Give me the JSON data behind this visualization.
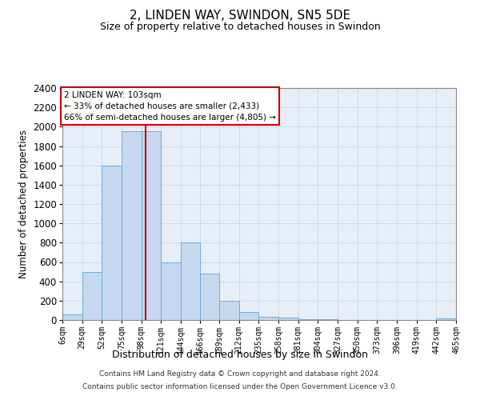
{
  "title": "2, LINDEN WAY, SWINDON, SN5 5DE",
  "subtitle": "Size of property relative to detached houses in Swindon",
  "xlabel": "Distribution of detached houses by size in Swindon",
  "ylabel": "Number of detached properties",
  "footer_line1": "Contains HM Land Registry data © Crown copyright and database right 2024.",
  "footer_line2": "Contains public sector information licensed under the Open Government Licence v3.0.",
  "annotation_title": "2 LINDEN WAY: 103sqm",
  "annotation_line1": "← 33% of detached houses are smaller (2,433)",
  "annotation_line2": "66% of semi-detached houses are larger (4,805) →",
  "bin_edges": [
    6,
    29,
    52,
    75,
    98,
    121,
    144,
    166,
    189,
    212,
    235,
    258,
    281,
    304,
    327,
    350,
    373,
    396,
    419,
    442,
    465
  ],
  "bin_labels": [
    "6sqm",
    "29sqm",
    "52sqm",
    "75sqm",
    "98sqm",
    "121sqm",
    "144sqm",
    "166sqm",
    "189sqm",
    "212sqm",
    "235sqm",
    "258sqm",
    "281sqm",
    "304sqm",
    "327sqm",
    "350sqm",
    "373sqm",
    "396sqm",
    "419sqm",
    "442sqm",
    "465sqm"
  ],
  "bar_heights": [
    60,
    500,
    1600,
    1950,
    1950,
    600,
    800,
    480,
    200,
    80,
    35,
    25,
    10,
    10,
    0,
    0,
    0,
    0,
    0,
    20
  ],
  "bar_color": "#c5d8f0",
  "bar_edge_color": "#6baed6",
  "vline_color": "#cc0000",
  "vline_x": 103,
  "annotation_box_color": "#ffffff",
  "annotation_box_edge": "#cc0000",
  "ylim": [
    0,
    2400
  ],
  "yticks": [
    0,
    200,
    400,
    600,
    800,
    1000,
    1200,
    1400,
    1600,
    1800,
    2000,
    2200,
    2400
  ],
  "grid_color": "#c8d4e8",
  "background_color": "#e8eef8"
}
